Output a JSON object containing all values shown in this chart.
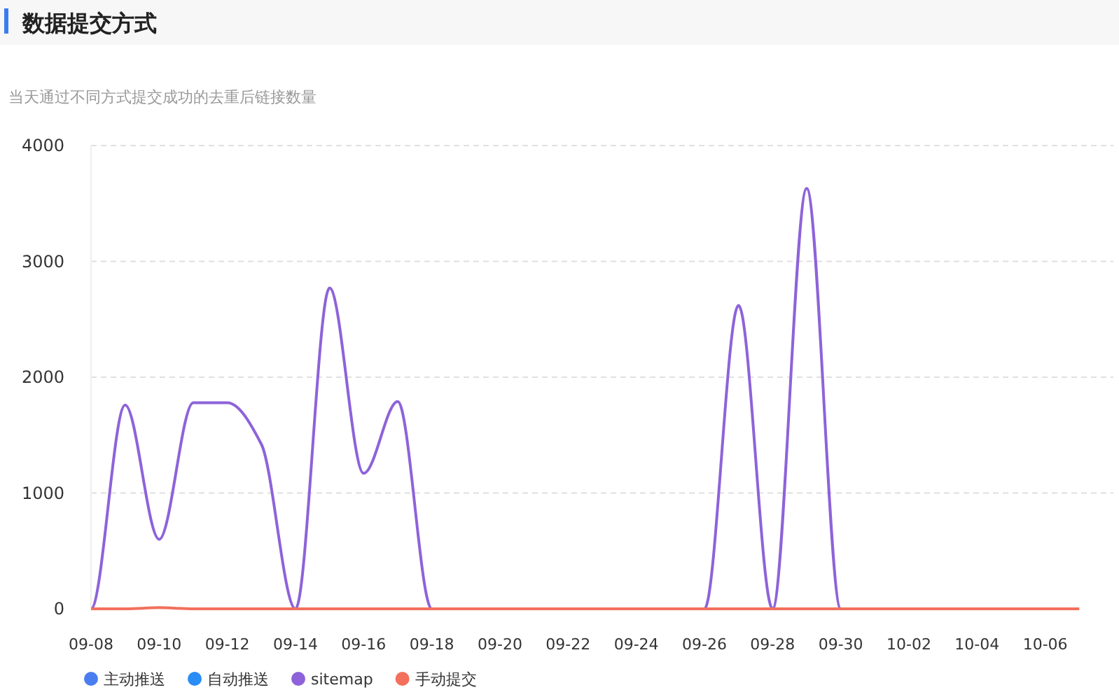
{
  "chart_data": {
    "type": "line",
    "title": "数据提交方式",
    "subtitle": "当天通过不同方式提交成功的去重后链接数量",
    "categories": [
      "09-08",
      null,
      "09-10",
      null,
      "09-12",
      null,
      "09-14",
      null,
      "09-16",
      null,
      "09-18",
      null,
      "09-20",
      null,
      "09-22",
      null,
      "09-24",
      null,
      "09-26",
      null,
      "09-28",
      null,
      "09-30",
      null,
      "10-02",
      null,
      "10-04",
      null,
      "10-06",
      null
    ],
    "series": [
      {
        "name": "主动推送",
        "color": "#4a7ef0",
        "values": [
          null,
          null,
          null,
          null,
          null,
          null,
          null,
          null,
          null,
          null,
          null,
          null,
          null,
          null,
          null,
          null,
          null,
          null,
          null,
          null,
          null,
          null,
          null,
          null,
          null,
          null,
          null,
          null,
          null,
          null
        ]
      },
      {
        "name": "自动推送",
        "color": "#2a8cf5",
        "values": [
          null,
          null,
          null,
          null,
          null,
          null,
          null,
          null,
          null,
          null,
          null,
          null,
          null,
          null,
          null,
          null,
          null,
          null,
          null,
          null,
          null,
          null,
          null,
          null,
          null,
          null,
          null,
          null,
          null,
          null
        ]
      },
      {
        "name": "sitemap",
        "color": "#8e63d9",
        "values": [
          0,
          1760,
          600,
          1780,
          1780,
          1420,
          0,
          2770,
          1170,
          1790,
          0,
          0,
          0,
          0,
          0,
          0,
          0,
          0,
          0,
          2620,
          0,
          3630,
          0,
          0,
          null,
          null,
          null,
          null,
          null,
          null
        ]
      },
      {
        "name": "手动提交",
        "color": "#f2705c",
        "values": [
          0,
          0,
          10,
          0,
          0,
          0,
          0,
          0,
          0,
          0,
          0,
          0,
          0,
          0,
          0,
          0,
          0,
          0,
          0,
          0,
          0,
          0,
          0,
          0,
          0,
          0,
          0,
          0,
          0,
          0
        ]
      }
    ],
    "ylim": [
      0,
      4000
    ],
    "yticks": [
      0,
      1000,
      2000,
      3000,
      4000
    ],
    "grid": "y",
    "legend": "bottom"
  }
}
